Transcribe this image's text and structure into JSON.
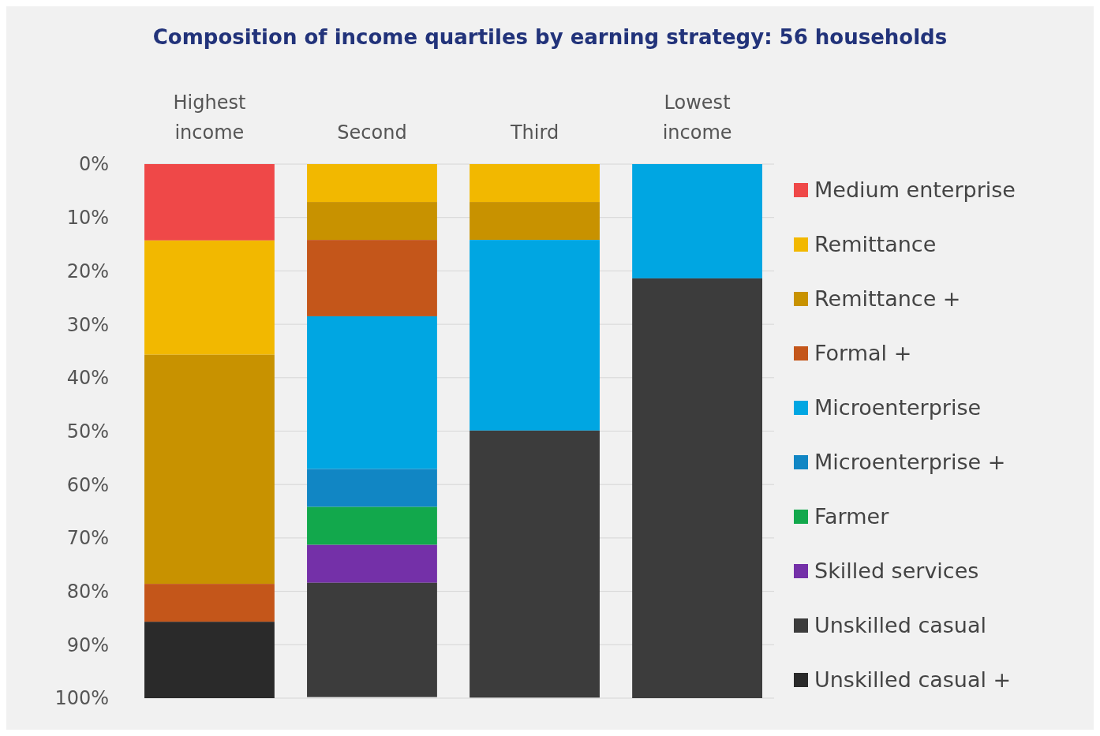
{
  "chart_data": {
    "type": "bar",
    "stacked": true,
    "title": "Composition of income quartiles by earning strategy: 56 households",
    "categories": [
      "Highest income",
      "Second",
      "Third",
      "Lowest income"
    ],
    "series": [
      {
        "name": "Medium enterprise",
        "color": "#ef4848",
        "values": [
          14.3,
          0,
          0,
          0
        ]
      },
      {
        "name": "Remittance",
        "color": "#f2b800",
        "values": [
          21.4,
          7.1,
          7.1,
          0
        ]
      },
      {
        "name": "Remittance +",
        "color": "#c89200",
        "values": [
          42.9,
          7.1,
          7.1,
          0
        ]
      },
      {
        "name": "Formal +",
        "color": "#c4561a",
        "values": [
          7.1,
          14.3,
          0,
          0
        ]
      },
      {
        "name": "Microenterprise",
        "color": "#00a6e2",
        "values": [
          0,
          28.6,
          35.7,
          21.4
        ]
      },
      {
        "name": "Microenterprise +",
        "color": "#1186c4",
        "values": [
          0,
          7.1,
          0,
          0
        ]
      },
      {
        "name": "Farmer",
        "color": "#12a84c",
        "values": [
          0,
          7.1,
          0,
          0
        ]
      },
      {
        "name": "Skilled services",
        "color": "#7430a8",
        "values": [
          0,
          7.1,
          0,
          0
        ]
      },
      {
        "name": "Unskilled casual",
        "color": "#3c3c3c",
        "values": [
          0,
          21.4,
          50,
          78.6
        ]
      },
      {
        "name": "Unskilled casual +",
        "color": "#2a2a2a",
        "values": [
          14.3,
          0,
          0,
          0
        ]
      }
    ],
    "ylim": [
      100,
      0
    ],
    "yticks": [
      {
        "value": 0,
        "label": "0%"
      },
      {
        "value": 10,
        "label": "10%"
      },
      {
        "value": 20,
        "label": "20%"
      },
      {
        "value": 30,
        "label": "30%"
      },
      {
        "value": 40,
        "label": "40%"
      },
      {
        "value": 50,
        "label": "50%"
      },
      {
        "value": 60,
        "label": "60%"
      },
      {
        "value": 70,
        "label": "70%"
      },
      {
        "value": 80,
        "label": "80%"
      },
      {
        "value": 90,
        "label": "90%"
      },
      {
        "value": 100,
        "label": "100%"
      }
    ],
    "grid": "y",
    "legend": "right"
  }
}
